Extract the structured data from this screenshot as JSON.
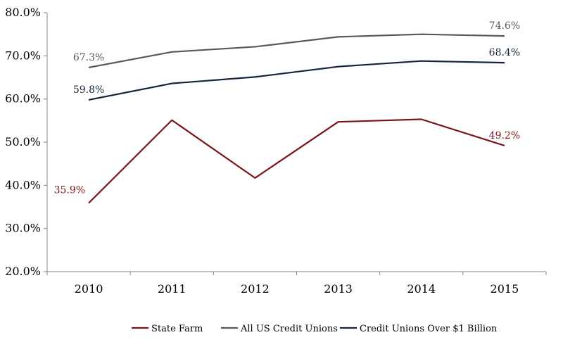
{
  "chart_data": {
    "type": "line",
    "title": "",
    "xlabel": "",
    "ylabel": "",
    "categories": [
      "2010",
      "2011",
      "2012",
      "2013",
      "2014",
      "2015"
    ],
    "ylim": [
      20,
      80
    ],
    "yticks": [
      20,
      30,
      40,
      50,
      60,
      70,
      80
    ],
    "ytick_labels": [
      "20.0%",
      "30.0%",
      "40.0%",
      "50.0%",
      "60.0%",
      "70.0%",
      "80.0%"
    ],
    "grid": false,
    "legend_position": "bottom",
    "series": [
      {
        "name": "State Farm",
        "color": "#7b1416",
        "values": [
          35.9,
          55.1,
          41.7,
          54.7,
          55.3,
          49.2
        ],
        "labels": [
          {
            "index": 0,
            "text": "35.9%",
            "pos": "above-left"
          },
          {
            "index": 5,
            "text": "49.2%",
            "pos": "above"
          }
        ]
      },
      {
        "name": "All US Credit Unions",
        "color": "#595959",
        "values": [
          67.3,
          70.9,
          72.1,
          74.4,
          75.0,
          74.6
        ],
        "labels": [
          {
            "index": 0,
            "text": "67.3%",
            "pos": "above"
          },
          {
            "index": 5,
            "text": "74.6%",
            "pos": "above"
          }
        ]
      },
      {
        "name": "Credit Unions Over $1 Billion",
        "color": "#15243a",
        "values": [
          59.8,
          63.6,
          65.1,
          67.5,
          68.8,
          68.4
        ],
        "labels": [
          {
            "index": 0,
            "text": "59.8%",
            "pos": "above"
          },
          {
            "index": 5,
            "text": "68.4%",
            "pos": "above"
          }
        ]
      }
    ]
  }
}
